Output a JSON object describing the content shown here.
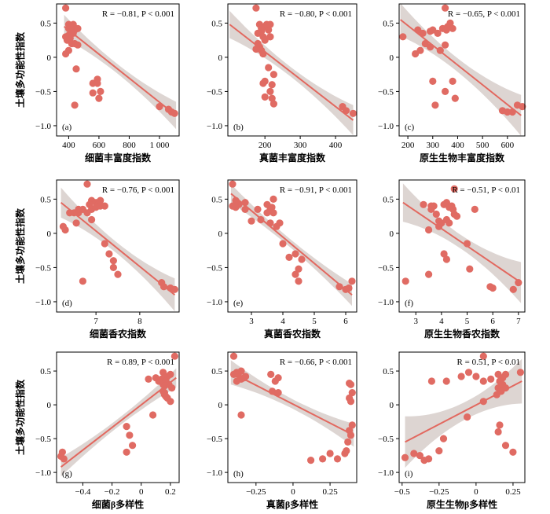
{
  "colors": {
    "points": "#e06b63",
    "fit_line": "#e2685f",
    "ci_band": "#d9d0cd"
  },
  "chart_data": [
    {
      "type": "scatter",
      "panel": "(a)",
      "annotation": "R = −0.81, P < 0.001",
      "xlabel": "细菌丰富度指数",
      "ylabel": "土壤多功能性指数",
      "xlim": [
        320,
        1130
      ],
      "ylim": [
        -1.15,
        0.78
      ],
      "xticks": [
        400,
        600,
        800,
        1000
      ],
      "xtick_labels": [
        "400",
        "600",
        "800",
        "1 000"
      ],
      "yticks": [
        -1.0,
        -0.5,
        0,
        0.5
      ],
      "ytick_labels": [
        "−1.0",
        "−0.5",
        "0",
        "0.5"
      ],
      "fit": {
        "x": [
          370,
          1110
        ],
        "y": [
          0.45,
          -0.85
        ]
      },
      "band_half_width": [
        0.17,
        0.07,
        0.2
      ],
      "x": [
        380,
        400,
        400,
        410,
        420,
        430,
        440,
        460,
        380,
        390,
        420,
        440,
        460,
        430,
        410,
        450,
        400,
        380,
        400,
        420,
        560,
        590,
        600,
        610,
        560,
        590,
        440,
        1000,
        1060,
        1080,
        1100
      ],
      "y": [
        0.72,
        0.48,
        0.42,
        0.4,
        0.45,
        0.48,
        0.4,
        0.42,
        0.3,
        0.25,
        0.38,
        0.2,
        0.18,
        0.35,
        0.28,
        -0.17,
        0.1,
        0.05,
        0.32,
        0.2,
        -0.38,
        -0.32,
        -0.6,
        -0.5,
        -0.52,
        -0.38,
        -0.7,
        -0.72,
        -0.76,
        -0.8,
        -0.82
      ]
    },
    {
      "type": "scatter",
      "panel": "(b)",
      "annotation": "R = −0.80, P < 0.001",
      "xlabel": "真菌丰富度指数",
      "ylabel": "",
      "xlim": [
        95,
        460
      ],
      "ylim": [
        -1.15,
        0.78
      ],
      "xticks": [
        200,
        300,
        400
      ],
      "xtick_labels": [
        "200",
        "300",
        "400"
      ],
      "yticks": [
        -1.0,
        -0.5,
        0,
        0.5
      ],
      "ytick_labels": [
        "−1.0",
        "−0.5",
        "0",
        "0.5"
      ],
      "fit": {
        "x": [
          100,
          450
        ],
        "y": [
          0.48,
          -0.92
        ]
      },
      "band_half_width": [
        0.2,
        0.07,
        0.22
      ],
      "x": [
        175,
        185,
        190,
        200,
        205,
        210,
        215,
        180,
        190,
        195,
        200,
        185,
        175,
        180,
        190,
        195,
        200,
        210,
        220,
        215,
        220,
        200,
        195,
        225,
        420,
        430,
        450,
        215,
        225,
        215
      ],
      "y": [
        0.72,
        0.48,
        0.42,
        0.45,
        0.48,
        0.4,
        0.3,
        0.35,
        0.38,
        0.3,
        0.25,
        0.15,
        0.12,
        0.2,
        0.1,
        0.05,
        -0.35,
        -0.15,
        -0.4,
        -0.5,
        -0.6,
        -0.58,
        -0.38,
        -0.68,
        -0.72,
        -0.78,
        -0.82,
        0.3,
        -0.25,
        0.48
      ]
    },
    {
      "type": "scatter",
      "panel": "(c)",
      "annotation": "R = −0.65, P < 0.001",
      "xlabel": "原生生物丰富度指数",
      "ylabel": "",
      "xlim": [
        165,
        670
      ],
      "ylim": [
        -1.15,
        0.78
      ],
      "xticks": [
        200,
        300,
        400,
        500,
        600
      ],
      "xtick_labels": [
        "200",
        "300",
        "400",
        "500",
        "600"
      ],
      "yticks": [
        -1.0,
        -0.5,
        0,
        0.5
      ],
      "ytick_labels": [
        "−1.0",
        "−0.5",
        "0",
        "0.5"
      ],
      "fit": {
        "x": [
          170,
          655
        ],
        "y": [
          0.55,
          -0.85
        ]
      },
      "band_half_width": [
        0.24,
        0.1,
        0.3
      ],
      "x": [
        180,
        240,
        260,
        290,
        300,
        320,
        340,
        350,
        355,
        360,
        370,
        380,
        350,
        330,
        250,
        230,
        270,
        290,
        300,
        380,
        390,
        580,
        600,
        620,
        640,
        660,
        350,
        310
      ],
      "y": [
        0.3,
        0.4,
        0.35,
        0.38,
        0.4,
        0.35,
        0.42,
        0.72,
        0.4,
        0.45,
        0.5,
        0.42,
        0.18,
        0.1,
        0.1,
        0.05,
        0.2,
        0.15,
        -0.35,
        -0.35,
        -0.6,
        -0.78,
        -0.8,
        -0.8,
        -0.7,
        -0.72,
        -0.5,
        -0.7
      ]
    },
    {
      "type": "scatter",
      "panel": "(d)",
      "annotation": "R = −0.76, P < 0.001",
      "xlabel": "细菌香农指数",
      "ylabel": "土壤多功能性指数",
      "xlim": [
        6.1,
        8.9
      ],
      "ylim": [
        -1.15,
        0.78
      ],
      "xticks": [
        7,
        8
      ],
      "xtick_labels": [
        "7",
        "8"
      ],
      "yticks": [
        -1.0,
        -0.5,
        0,
        0.5
      ],
      "ytick_labels": [
        "−1.0",
        "−0.5",
        "0",
        "0.5"
      ],
      "fit": {
        "x": [
          6.2,
          8.8
        ],
        "y": [
          0.45,
          -0.9
        ]
      },
      "band_half_width": [
        0.22,
        0.08,
        0.24
      ],
      "x": [
        6.8,
        6.9,
        6.85,
        7.0,
        7.05,
        7.1,
        7.2,
        6.7,
        6.9,
        6.8,
        7.0,
        7.1,
        6.6,
        6.5,
        6.55,
        6.6,
        6.3,
        6.25,
        6.4,
        7.2,
        7.3,
        7.4,
        7.5,
        7.4,
        6.7,
        8.5,
        8.55,
        8.7,
        8.8,
        6.9
      ],
      "y": [
        0.72,
        0.48,
        0.42,
        0.45,
        0.42,
        0.48,
        0.4,
        0.35,
        0.35,
        0.3,
        0.38,
        0.4,
        0.3,
        0.3,
        0.15,
        0.35,
        0.05,
        0.1,
        0.3,
        -0.15,
        -0.3,
        -0.4,
        -0.6,
        -0.5,
        -0.7,
        -0.72,
        -0.78,
        -0.8,
        -0.82,
        0.2
      ]
    },
    {
      "type": "scatter",
      "panel": "(e)",
      "annotation": "R = −0.91, P < 0.001",
      "xlabel": "真菌香农指数",
      "ylabel": "",
      "xlim": [
        2.25,
        6.35
      ],
      "ylim": [
        -1.15,
        0.78
      ],
      "xticks": [
        3,
        4,
        5,
        6
      ],
      "xtick_labels": [
        "3",
        "4",
        "5",
        "6"
      ],
      "yticks": [
        -1.0,
        -0.5,
        0,
        0.5
      ],
      "ytick_labels": [
        "−1.0",
        "−0.5",
        "0",
        "0.5"
      ],
      "fit": {
        "x": [
          2.35,
          6.2
        ],
        "y": [
          0.58,
          -0.9
        ]
      },
      "band_half_width": [
        0.14,
        0.06,
        0.16
      ],
      "x": [
        2.4,
        2.5,
        2.6,
        2.8,
        3.2,
        3.5,
        3.6,
        3.65,
        3.7,
        3.5,
        3.3,
        3.0,
        2.8,
        2.5,
        2.4,
        3.8,
        3.9,
        4.0,
        4.2,
        4.4,
        4.5,
        4.6,
        4.5,
        4.4,
        5.8,
        6.0,
        6.1,
        6.2,
        3.7,
        3.6
      ],
      "y": [
        0.72,
        0.48,
        0.42,
        0.45,
        0.35,
        0.42,
        0.35,
        0.38,
        0.5,
        0.3,
        0.2,
        0.18,
        0.35,
        0.38,
        0.4,
        0.1,
        0.15,
        -0.15,
        -0.35,
        -0.6,
        -0.7,
        -0.38,
        -0.52,
        -0.3,
        -0.78,
        -0.82,
        -0.8,
        -0.7,
        0.3,
        0.15
      ]
    },
    {
      "type": "scatter",
      "panel": "(f)",
      "annotation": "R = −0.51, P < 0.01",
      "xlabel": "原生生物香农指数",
      "ylabel": "",
      "xlim": [
        2.35,
        7.25
      ],
      "ylim": [
        -1.15,
        0.78
      ],
      "xticks": [
        3,
        4,
        5,
        6,
        7
      ],
      "xtick_labels": [
        "3",
        "4",
        "5",
        "6",
        "7"
      ],
      "yticks": [
        -1.0,
        -0.5,
        0,
        0.5
      ],
      "ytick_labels": [
        "−1.0",
        "−0.5",
        "0",
        "0.5"
      ],
      "fit": {
        "x": [
          2.5,
          7.1
        ],
        "y": [
          0.45,
          -0.72
        ]
      },
      "band_half_width": [
        0.28,
        0.1,
        0.3
      ],
      "x": [
        4.5,
        4.1,
        4.2,
        4.3,
        4.4,
        4.45,
        4.5,
        3.6,
        3.7,
        3.8,
        3.9,
        4.0,
        4.2,
        4.3,
        3.5,
        3.3,
        3.6,
        4.1,
        4.2,
        5.3,
        5.0,
        5.1,
        5.9,
        6.0,
        6.8,
        7.0,
        2.6,
        3.5,
        4.6,
        3.9
      ],
      "y": [
        0.65,
        0.42,
        0.45,
        0.38,
        0.4,
        0.35,
        0.28,
        0.35,
        0.4,
        0.28,
        0.18,
        0.15,
        0.2,
        0.15,
        0.05,
        0.42,
        0.4,
        -0.3,
        -0.38,
        0.35,
        -0.15,
        -0.52,
        -0.78,
        -0.8,
        -0.82,
        -0.72,
        -0.7,
        -0.6,
        0.25,
        0.1
      ]
    },
    {
      "type": "scatter",
      "panel": "(g)",
      "annotation": "R = 0.89, P < 0.001",
      "xlabel": "细菌β多样性",
      "ylabel": "土壤多功能性指数",
      "xlim": [
        -0.58,
        0.26
      ],
      "ylim": [
        -1.15,
        0.78
      ],
      "xticks": [
        -0.4,
        -0.2,
        0,
        0.2
      ],
      "xtick_labels": [
        "−0.4",
        "−0.2",
        "0",
        "0.2"
      ],
      "yticks": [
        -1.0,
        -0.5,
        0,
        0.5
      ],
      "ytick_labels": [
        "−1.0",
        "−0.5",
        "0",
        "0.5"
      ],
      "fit": {
        "x": [
          -0.55,
          0.24
        ],
        "y": [
          -0.92,
          0.4
        ]
      },
      "band_half_width": [
        0.14,
        0.06,
        0.14
      ],
      "x": [
        0.23,
        0.15,
        0.2,
        0.18,
        0.16,
        0.14,
        0.12,
        0.1,
        0.17,
        0.19,
        0.21,
        0.15,
        0.16,
        0.05,
        0.18,
        0.2,
        0.15,
        0.16,
        -0.1,
        -0.08,
        -0.06,
        -0.1,
        0.08,
        -0.54,
        -0.55,
        -0.53,
        0.16,
        0.17
      ],
      "y": [
        0.72,
        0.48,
        0.45,
        0.42,
        0.4,
        0.38,
        0.35,
        0.4,
        0.35,
        0.3,
        0.25,
        0.2,
        0.18,
        0.38,
        0.1,
        0.05,
        0.3,
        0.28,
        -0.32,
        -0.45,
        -0.6,
        -0.7,
        -0.15,
        -0.7,
        -0.76,
        -0.8,
        0.15,
        0.12
      ]
    },
    {
      "type": "scatter",
      "panel": "(h)",
      "annotation": "R = −0.66, P < 0.001",
      "xlabel": "真菌β多样性",
      "ylabel": "",
      "xlim": [
        -0.44,
        0.43
      ],
      "ylim": [
        -1.15,
        0.78
      ],
      "xticks": [
        -0.25,
        0,
        0.25
      ],
      "xtick_labels": [
        "−0.25",
        "0",
        "0.25"
      ],
      "yticks": [
        -1.0,
        -0.5,
        0,
        0.5
      ],
      "ytick_labels": [
        "−1.0",
        "−0.5",
        "0",
        "0.5"
      ],
      "fit": {
        "x": [
          -0.42,
          0.41
        ],
        "y": [
          0.48,
          -0.45
        ]
      },
      "band_half_width": [
        0.18,
        0.07,
        0.17
      ],
      "x": [
        -0.4,
        -0.38,
        -0.37,
        -0.35,
        -0.33,
        -0.32,
        -0.35,
        -0.38,
        -0.4,
        -0.15,
        -0.1,
        -0.12,
        -0.14,
        -0.1,
        -0.35,
        0.38,
        0.39,
        0.4,
        0.38,
        0.39,
        0.4,
        0.38,
        0.39,
        0.37,
        0.2,
        0.25,
        0.3,
        0.12,
        0.35,
        0.36
      ],
      "y": [
        0.72,
        0.48,
        0.45,
        0.5,
        0.4,
        0.42,
        0.38,
        0.35,
        0.45,
        0.45,
        0.4,
        0.35,
        0.2,
        0.18,
        -0.15,
        0.32,
        0.3,
        0.18,
        0.1,
        0.05,
        -0.3,
        -0.38,
        -0.45,
        -0.55,
        -0.8,
        -0.72,
        -0.8,
        -0.82,
        -0.72,
        -0.68
      ]
    },
    {
      "type": "scatter",
      "panel": "(i)",
      "annotation": "R = 0.51, P < 0.01",
      "xlabel": "原生生物β多样性",
      "ylabel": "",
      "xlim": [
        -0.52,
        0.33
      ],
      "ylim": [
        -1.15,
        0.78
      ],
      "xticks": [
        -0.5,
        -0.25,
        0,
        0.25
      ],
      "xtick_labels": [
        "−0.5",
        "−0.25",
        "0",
        "0.25"
      ],
      "yticks": [
        -1.0,
        -0.5,
        0,
        0.5
      ],
      "ytick_labels": [
        "−1.0",
        "−0.5",
        "0",
        "0.5"
      ],
      "fit": {
        "x": [
          -0.48,
          0.31
        ],
        "y": [
          -0.55,
          0.35
        ]
      },
      "band_half_width": [
        0.38,
        0.13,
        0.33
      ],
      "x": [
        0.05,
        -0.05,
        -0.1,
        -0.2,
        0.0,
        0.15,
        0.2,
        0.18,
        0.16,
        0.18,
        0.3,
        0.1,
        0.15,
        0.2,
        0.17,
        0.14,
        0.05,
        -0.22,
        -0.06,
        0.05,
        0.16,
        0.15,
        0.2,
        0.25,
        -0.25,
        -0.32,
        -0.35,
        -0.38,
        -0.48,
        -0.42,
        -0.3
      ],
      "y": [
        0.72,
        0.48,
        0.42,
        0.35,
        0.42,
        0.45,
        0.45,
        0.4,
        0.35,
        0.3,
        0.48,
        0.38,
        0.25,
        0.25,
        0.2,
        0.15,
        0.05,
        -0.5,
        -0.18,
        0.35,
        -0.3,
        -0.4,
        -0.6,
        -0.7,
        -0.68,
        -0.8,
        -0.82,
        -0.75,
        -0.78,
        -0.72,
        0.35
      ]
    }
  ]
}
